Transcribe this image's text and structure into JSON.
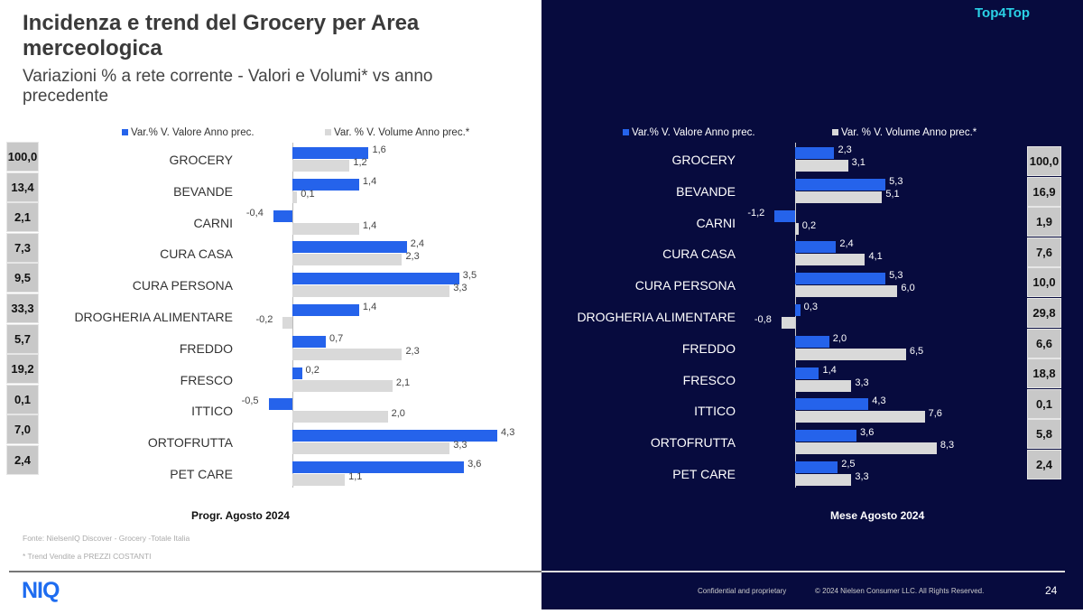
{
  "header": {
    "title": "Incidenza e trend del Grocery per Area merceologica",
    "subtitle": "Variazioni % a rete corrente - Valori e Volumi* vs anno precedente",
    "brand_tag": "Top4Top"
  },
  "colors": {
    "valore": "#2563eb",
    "volume": "#d9d9d9",
    "dark_bg": "#070b3e"
  },
  "chart_data": [
    {
      "type": "bar",
      "orientation": "horizontal",
      "title": "Progr. Agosto 2024",
      "categories": [
        "GROCERY",
        "BEVANDE",
        "CARNI",
        "CURA CASA",
        "CURA PERSONA",
        "DROGHERIA ALIMENTARE",
        "FREDDO",
        "FRESCO",
        "ITTICO",
        "ORTOFRUTTA",
        "PET CARE"
      ],
      "series": [
        {
          "name": "Var.% V. Valore Anno prec.",
          "values": [
            1.6,
            1.4,
            -0.4,
            2.4,
            3.5,
            1.4,
            0.7,
            0.2,
            -0.5,
            4.3,
            3.6
          ],
          "labels": [
            "1,6",
            "1,4",
            "-0,4",
            "2,4",
            "3,5",
            "1,4",
            "0,7",
            "0,2",
            "-0,5",
            "4,3",
            "3,6"
          ]
        },
        {
          "name": "Var. % V. Volume Anno prec.*",
          "values": [
            1.2,
            0.1,
            1.4,
            2.3,
            3.3,
            -0.2,
            2.3,
            2.1,
            2.0,
            3.3,
            1.1
          ],
          "labels": [
            "1,2",
            "0,1",
            "1,4",
            "2,3",
            "3,3",
            "-0,2",
            "2,3",
            "2,1",
            "2,0",
            "3,3",
            "1,1"
          ]
        }
      ],
      "incidenza": [
        "100,0",
        "13,4",
        "2,1",
        "7,3",
        "9,5",
        "33,3",
        "5,7",
        "19,2",
        "0,1",
        "7,0",
        "2,4"
      ],
      "legend": "top"
    },
    {
      "type": "bar",
      "orientation": "horizontal",
      "title": "Mese Agosto 2024",
      "categories": [
        "GROCERY",
        "BEVANDE",
        "CARNI",
        "CURA CASA",
        "CURA PERSONA",
        "DROGHERIA ALIMENTARE",
        "FREDDO",
        "FRESCO",
        "ITTICO",
        "ORTOFRUTTA",
        "PET CARE"
      ],
      "series": [
        {
          "name": "Var.% V. Valore Anno prec.",
          "values": [
            2.3,
            5.3,
            -1.2,
            2.4,
            5.3,
            0.3,
            2.0,
            1.4,
            4.3,
            3.6,
            2.5
          ],
          "labels": [
            "2,3",
            "5,3",
            "-1,2",
            "2,4",
            "5,3",
            "0,3",
            "2,0",
            "1,4",
            "4,3",
            "3,6",
            "2,5"
          ]
        },
        {
          "name": "Var. % V. Volume Anno prec.*",
          "values": [
            3.1,
            5.1,
            0.2,
            4.1,
            6.0,
            -0.8,
            6.5,
            3.3,
            7.6,
            8.3,
            3.3
          ],
          "labels": [
            "3,1",
            "5,1",
            "0,2",
            "4,1",
            "6,0",
            "-0,8",
            "6,5",
            "3,3",
            "7,6",
            "8,3",
            "3,3"
          ]
        }
      ],
      "incidenza": [
        "100,0",
        "16,9",
        "1,9",
        "7,6",
        "10,0",
        "29,8",
        "6,6",
        "18,8",
        "0,1",
        "5,8",
        "2,4"
      ],
      "legend": "top"
    }
  ],
  "footer": {
    "source": "Fonte: NielsenIQ Discover  - Grocery -Totale Italia",
    "note": "* Trend Vendite a PREZZI COSTANTI",
    "logo": "NIQ",
    "confidential": "Confidential and proprietary",
    "copyright": "© 2024 Nielsen Consumer LLC. All Rights Reserved.",
    "page": "24"
  }
}
